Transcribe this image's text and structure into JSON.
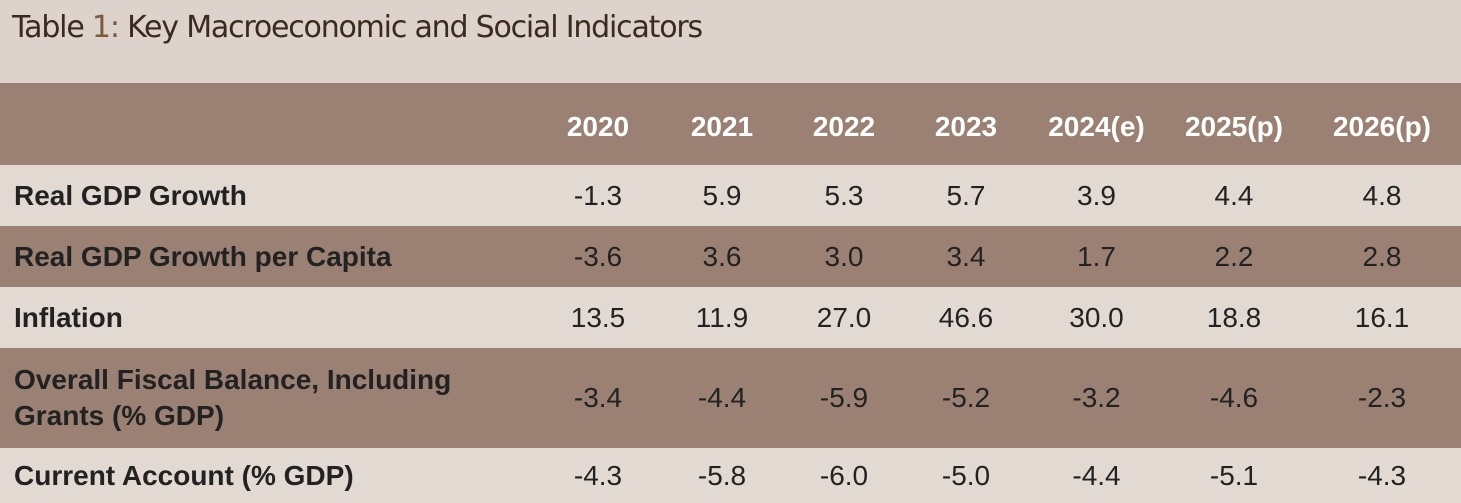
{
  "title": {
    "prefix": "Table ",
    "number": "1",
    "colon": ":",
    "text": " Key Macroeconomic and Social Indicators"
  },
  "table": {
    "years": [
      "2020",
      "2021",
      "2022",
      "2023",
      "2024(e)",
      "2025(p)",
      "2026(p)"
    ],
    "rows": [
      {
        "label": "Real GDP Growth",
        "values": [
          "-1.3",
          "5.9",
          "5.3",
          "5.7",
          "3.9",
          "4.4",
          "4.8"
        ]
      },
      {
        "label": "Real GDP Growth per Capita",
        "values": [
          "-3.6",
          "3.6",
          "3.0",
          "3.4",
          "1.7",
          "2.2",
          "2.8"
        ]
      },
      {
        "label": "Inflation",
        "values": [
          "13.5",
          "11.9",
          "27.0",
          "46.6",
          "30.0",
          "18.8",
          "16.1"
        ]
      },
      {
        "label": "Overall Fiscal Balance, Including Grants (% GDP)",
        "values": [
          "-3.4",
          "-4.4",
          "-5.9",
          "-5.2",
          "-3.2",
          "-4.6",
          "-2.3"
        ]
      },
      {
        "label": "Current Account (% GDP)",
        "values": [
          "-4.3",
          "-5.8",
          "-6.0",
          "-5.0",
          "-4.4",
          "-5.1",
          "-4.3"
        ]
      }
    ]
  }
}
